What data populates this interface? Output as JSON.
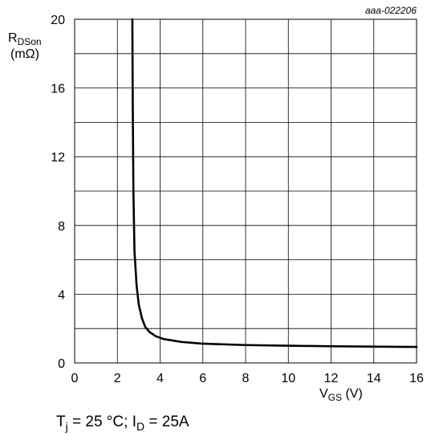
{
  "chart_data": {
    "type": "line",
    "figure_ref": "aaa-022206",
    "xlabel": {
      "main": "V",
      "sub": "GS",
      "unit": " (V)"
    },
    "ylabel": {
      "main": "R",
      "sub": "DSon",
      "unit": "(mΩ)"
    },
    "xlim": [
      0,
      16
    ],
    "ylim": [
      0,
      20
    ],
    "x_ticks": [
      0,
      2,
      4,
      6,
      8,
      10,
      12,
      14,
      16
    ],
    "y_ticks": [
      0,
      4,
      8,
      12,
      16,
      20
    ],
    "x_minor_step": 2,
    "y_minor_step": 2,
    "grid": true,
    "series": [
      {
        "values": [
          {
            "x": 2.7,
            "y": 20
          },
          {
            "x": 2.72,
            "y": 15
          },
          {
            "x": 2.75,
            "y": 10
          },
          {
            "x": 2.8,
            "y": 6.5
          },
          {
            "x": 2.9,
            "y": 4.5
          },
          {
            "x": 3.0,
            "y": 3.4
          },
          {
            "x": 3.15,
            "y": 2.6
          },
          {
            "x": 3.3,
            "y": 2.1
          },
          {
            "x": 3.5,
            "y": 1.8
          },
          {
            "x": 3.8,
            "y": 1.55
          },
          {
            "x": 4.2,
            "y": 1.38
          },
          {
            "x": 5.0,
            "y": 1.22
          },
          {
            "x": 6.0,
            "y": 1.12
          },
          {
            "x": 8.0,
            "y": 1.04
          },
          {
            "x": 10.0,
            "y": 1.0
          },
          {
            "x": 12.0,
            "y": 0.97
          },
          {
            "x": 14.0,
            "y": 0.95
          },
          {
            "x": 16.0,
            "y": 0.93
          }
        ]
      }
    ],
    "condition": {
      "T": "T",
      "T_sub": "j",
      "T_rest": " = 25 °C; ",
      "I": "I",
      "I_sub": "D",
      "I_rest": " = 25A"
    }
  }
}
